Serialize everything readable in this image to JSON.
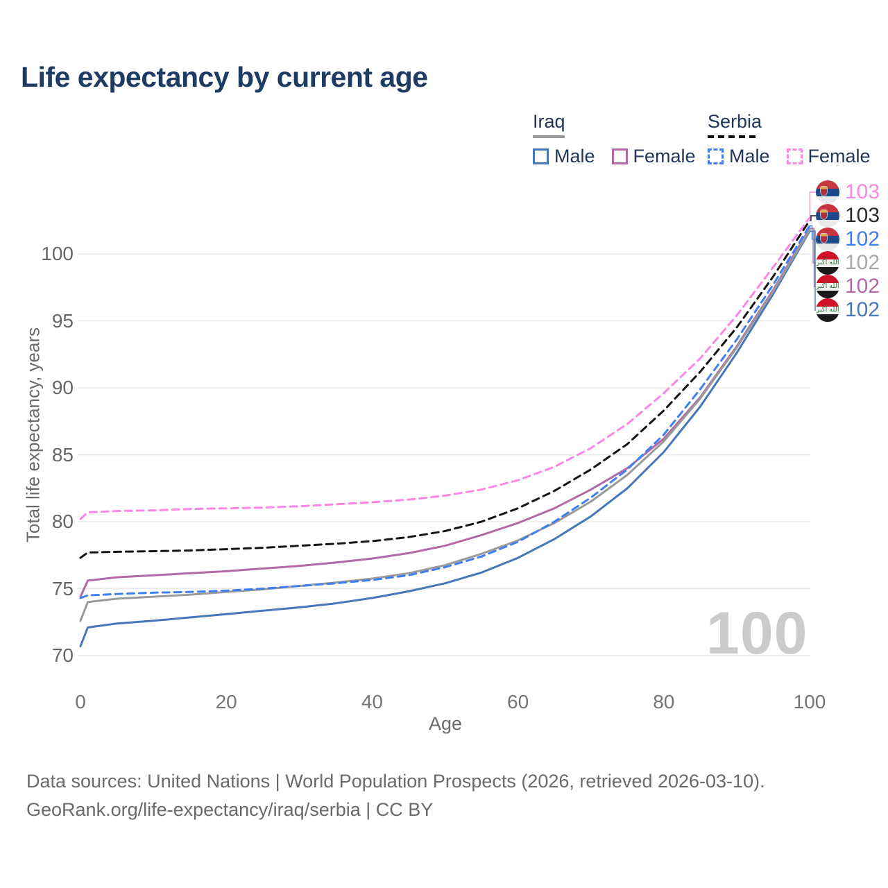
{
  "title": "Life expectancy by current age",
  "legend": {
    "groups": [
      {
        "name": "Iraq",
        "underline_style": "solid",
        "underline_color": "#999999",
        "items": [
          {
            "label": "Male",
            "color": "#4678b9",
            "dash": false
          },
          {
            "label": "Female",
            "color": "#b269a6",
            "dash": false
          }
        ]
      },
      {
        "name": "Serbia",
        "underline_style": "dashed",
        "underline_color": "#141414",
        "items": [
          {
            "label": "Male",
            "color": "#3f80f0",
            "dash": true
          },
          {
            "label": "Female",
            "color": "#fc86e6",
            "dash": true
          }
        ]
      }
    ]
  },
  "chart_data": {
    "type": "line",
    "title": "Life expectancy by current age",
    "xlabel": "Age",
    "ylabel": "Total life expectancy, years",
    "xticks": [
      0,
      20,
      40,
      60,
      80,
      100
    ],
    "yticks": [
      70,
      75,
      80,
      85,
      90,
      95,
      100
    ],
    "xlim": [
      0,
      100
    ],
    "ylim": [
      69,
      104.5
    ],
    "grid": true,
    "legend_position": "top-right",
    "ages": [
      0,
      1,
      5,
      10,
      15,
      20,
      25,
      30,
      35,
      40,
      45,
      50,
      55,
      60,
      65,
      70,
      75,
      80,
      85,
      90,
      95,
      100
    ],
    "series": [
      {
        "id": "serbia-female",
        "country": "Serbia",
        "sex": "Female",
        "color": "#fc86e6",
        "dash": true,
        "end_label": "103",
        "values": [
          80.2,
          80.7,
          80.8,
          80.85,
          80.95,
          81.0,
          81.05,
          81.15,
          81.3,
          81.45,
          81.65,
          81.95,
          82.4,
          83.1,
          84.1,
          85.5,
          87.3,
          89.6,
          92.2,
          95.4,
          99.0,
          102.7
        ]
      },
      {
        "id": "serbia-both",
        "country": "Serbia",
        "sex": "Both sexes",
        "color": "#141414",
        "dash": true,
        "end_label": "103",
        "values": [
          77.3,
          77.7,
          77.75,
          77.8,
          77.85,
          77.95,
          78.05,
          78.2,
          78.35,
          78.55,
          78.85,
          79.3,
          80.0,
          81.0,
          82.3,
          83.9,
          85.8,
          88.3,
          91.2,
          94.5,
          98.3,
          102.5
        ]
      },
      {
        "id": "serbia-male",
        "country": "Serbia",
        "sex": "Male",
        "color": "#3f80f0",
        "dash": true,
        "end_label": "102",
        "values": [
          74.3,
          74.5,
          74.6,
          74.7,
          74.75,
          74.85,
          75.0,
          75.2,
          75.4,
          75.65,
          76.0,
          76.6,
          77.4,
          78.5,
          80.0,
          81.8,
          83.9,
          86.5,
          89.9,
          93.6,
          97.7,
          102.1
        ]
      },
      {
        "id": "iraq-both",
        "country": "Iraq",
        "sex": "Both sexes",
        "color": "#9a9a9a",
        "dash": false,
        "end_label": "102",
        "values": [
          72.6,
          74.0,
          74.25,
          74.4,
          74.55,
          74.75,
          74.95,
          75.2,
          75.45,
          75.75,
          76.15,
          76.75,
          77.6,
          78.6,
          79.9,
          81.5,
          83.5,
          86.0,
          89.2,
          93.0,
          97.2,
          101.8
        ]
      },
      {
        "id": "iraq-female",
        "country": "Iraq",
        "sex": "Female",
        "color": "#b269a6",
        "dash": false,
        "end_label": "102",
        "values": [
          74.4,
          75.6,
          75.85,
          76.0,
          76.15,
          76.3,
          76.5,
          76.7,
          76.95,
          77.25,
          77.65,
          78.2,
          79.0,
          79.9,
          81.0,
          82.4,
          84.0,
          86.2,
          89.3,
          93.1,
          97.3,
          101.9
        ]
      },
      {
        "id": "iraq-male",
        "country": "Iraq",
        "sex": "Male",
        "color": "#4678b9",
        "dash": false,
        "end_label": "102",
        "values": [
          70.7,
          72.1,
          72.4,
          72.6,
          72.85,
          73.1,
          73.35,
          73.6,
          73.9,
          74.3,
          74.8,
          75.4,
          76.2,
          77.3,
          78.7,
          80.4,
          82.5,
          85.2,
          88.6,
          92.6,
          97.0,
          101.7
        ]
      }
    ]
  },
  "flags": {
    "Serbia": {
      "bands": [
        "#c6363c",
        "#1b4a8c",
        "#e9e9ec"
      ],
      "crest": true
    },
    "Iraq": {
      "bands": [
        "#ce1126",
        "#f2f2f2",
        "#1a1a1a"
      ],
      "script": "الله أكبر",
      "script_color": "#3d7a3d"
    }
  },
  "watermark": "100",
  "footer": {
    "line1": "Data sources: United Nations | World Population Prospects (2026, retrieved 2026-03-10).",
    "line2": "GeoRank.org/life-expectancy/iraq/serbia | CC BY"
  }
}
